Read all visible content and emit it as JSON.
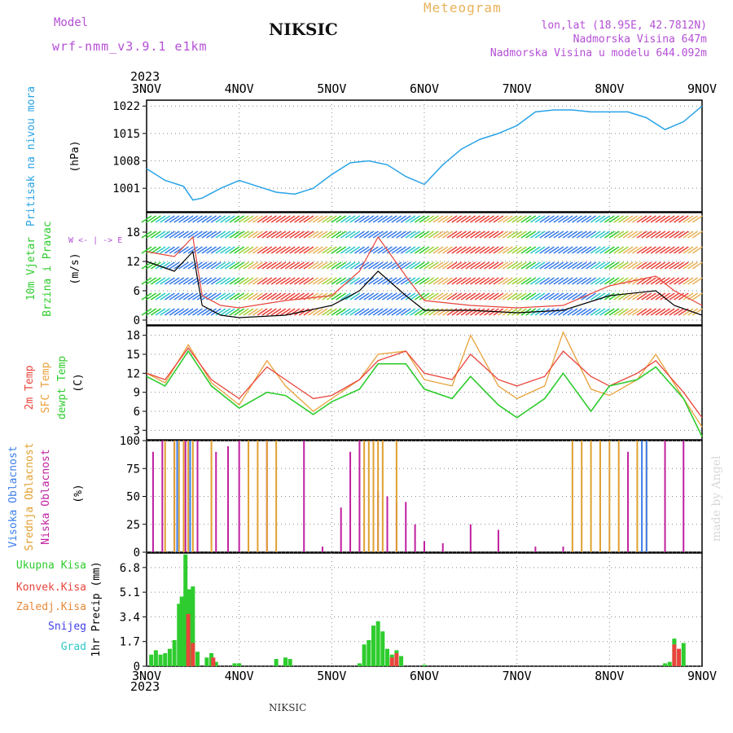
{
  "header": {
    "model_label": "Model",
    "model_name": "wrf-nmm_v3.9.1 e1km",
    "station": "NIKSIC",
    "meteogram": "Meteogram",
    "coords": "lon,lat (18.95E, 42.7812N)",
    "elevation": "Nadmorska Visina 647m",
    "model_elevation": "Nadmorska Visina u modelu 644.092m"
  },
  "footer": {
    "station": "NIKSIC",
    "credit": "made by Angel"
  },
  "time_axis": {
    "year": "2023",
    "labels": [
      "3NOV",
      "4NOV",
      "5NOV",
      "6NOV",
      "7NOV",
      "8NOV",
      "9NOV"
    ]
  },
  "panels": {
    "pressure": {
      "title": "Pritisak na nivou mora",
      "unit": "(hPa)",
      "ticks": [
        "1001",
        "1008",
        "1015",
        "1022"
      ]
    },
    "wind": {
      "title1": "10m Vjetar",
      "title2": "Brzina i Pravac",
      "unit": "(m/s)",
      "ticks": [
        "0",
        "6",
        "12",
        "18"
      ],
      "compass": "W <- | -> E"
    },
    "temp": {
      "title1": "2m Temp",
      "title2": "SFC Temp",
      "title3": "dewpt Temp",
      "unit": "(C)",
      "ticks": [
        "3",
        "6",
        "9",
        "12",
        "15",
        "18"
      ]
    },
    "cloud": {
      "title1": "Visoka Oblacnost",
      "title2": "Srednja Oblacnost",
      "title3": "Niska Oblacnost",
      "unit": "(%)",
      "ticks": [
        "0",
        "25",
        "50",
        "75",
        "100"
      ]
    },
    "precip": {
      "legend": [
        "Ukupna Kisa",
        "Konvek.Kisa",
        "Zaledj.Kisa",
        "Snijeg",
        "Grad"
      ],
      "unit": "1hr Precip (mm)",
      "ticks": [
        "0",
        "1.7",
        "3.4",
        "5.1",
        "6.8"
      ]
    }
  },
  "colors": {
    "pressure": "#29a3e6",
    "temp2m": "#e8453c",
    "sfc": "#e8a13a",
    "dewpt": "#2ecc2e",
    "cloud_high": "#3a7ee8",
    "cloud_mid": "#e0a030",
    "cloud_low": "#c020a0",
    "rain_total": "#2ecc2e",
    "rain_conv": "#e8453c",
    "model_text": "#b44fd6"
  },
  "chart_data": [
    {
      "type": "line",
      "x_unit": "days since 3NOV 00Z",
      "ylabel": "(hPa)",
      "ylim": [
        995,
        1023.5
      ],
      "series": [
        {
          "name": "Pritisak",
          "x": [
            0,
            0.2,
            0.4,
            0.5,
            0.6,
            0.8,
            1.0,
            1.2,
            1.4,
            1.6,
            1.8,
            2.0,
            2.2,
            2.4,
            2.6,
            2.8,
            3.0,
            3.2,
            3.4,
            3.6,
            3.8,
            4.0,
            4.2,
            4.4,
            4.6,
            4.8,
            5.0,
            5.2,
            5.4,
            5.6,
            5.8,
            6.0
          ],
          "values": [
            1006,
            1003,
            1001.5,
            998,
            998.5,
            1001,
            1003,
            1001.5,
            1000,
            999.5,
            1001,
            1004.5,
            1007.5,
            1008,
            1007,
            1004,
            1002,
            1007,
            1011,
            1013.5,
            1015,
            1017,
            1020.5,
            1021,
            1021,
            1020.5,
            1020.5,
            1020.5,
            1019,
            1016,
            1018,
            1022
          ]
        }
      ]
    },
    {
      "type": "line",
      "ylabel": "(m/s)",
      "ylim": [
        -1,
        22
      ],
      "series": [
        {
          "name": "brzina",
          "x": [
            0,
            0.3,
            0.5,
            0.6,
            0.8,
            1.0,
            1.5,
            2.0,
            2.3,
            2.5,
            2.8,
            3.0,
            3.5,
            4.0,
            4.5,
            5.0,
            5.5,
            5.7,
            6.0
          ],
          "values": [
            12,
            10,
            14,
            3,
            1,
            0.5,
            1,
            3,
            6,
            10,
            5,
            2,
            2,
            1.5,
            2,
            5,
            6,
            3,
            1
          ]
        },
        {
          "name": "udari",
          "x": [
            0,
            0.3,
            0.5,
            0.6,
            0.8,
            1.0,
            1.5,
            2.0,
            2.3,
            2.5,
            2.8,
            3.0,
            3.5,
            4.0,
            4.5,
            5.0,
            5.5,
            5.7,
            6.0
          ],
          "values": [
            14,
            13,
            17,
            5,
            3,
            2.5,
            4,
            5,
            10,
            17,
            9,
            4,
            3,
            2.5,
            3,
            7,
            9,
            6,
            3
          ]
        }
      ]
    },
    {
      "type": "line",
      "ylabel": "(C)",
      "ylim": [
        1.5,
        19.5
      ],
      "series": [
        {
          "name": "2m Temp",
          "x": [
            0,
            0.2,
            0.45,
            0.7,
            1.0,
            1.3,
            1.5,
            1.8,
            2.0,
            2.3,
            2.5,
            2.8,
            3.0,
            3.3,
            3.5,
            3.8,
            4.0,
            4.3,
            4.5,
            4.8,
            5.0,
            5.3,
            5.5,
            5.8,
            6.0
          ],
          "values": [
            12,
            11,
            16,
            11,
            8,
            13,
            11,
            8,
            8.5,
            11,
            14,
            15.5,
            12,
            11,
            15,
            11,
            10,
            11.5,
            15.5,
            11.5,
            10,
            12,
            14,
            9,
            5
          ]
        },
        {
          "name": "SFC Temp",
          "x": [
            0,
            0.2,
            0.45,
            0.7,
            1.0,
            1.3,
            1.5,
            1.8,
            2.0,
            2.3,
            2.5,
            2.8,
            3.0,
            3.3,
            3.5,
            3.8,
            4.0,
            4.3,
            4.5,
            4.8,
            5.0,
            5.3,
            5.5,
            5.8,
            6.0
          ],
          "values": [
            12,
            10.5,
            16.5,
            10.5,
            7,
            14,
            10,
            6,
            8,
            11,
            15,
            15.5,
            11,
            10,
            18,
            10,
            8,
            10,
            18.5,
            9.5,
            8.5,
            11,
            15,
            8,
            3.5
          ]
        },
        {
          "name": "dewpt Temp",
          "x": [
            0,
            0.2,
            0.45,
            0.7,
            1.0,
            1.3,
            1.5,
            1.8,
            2.0,
            2.3,
            2.5,
            2.8,
            3.0,
            3.3,
            3.5,
            3.8,
            4.0,
            4.3,
            4.5,
            4.8,
            5.0,
            5.3,
            5.5,
            5.8,
            6.0
          ],
          "values": [
            11.5,
            10,
            15.5,
            10,
            6.5,
            9,
            8.5,
            5.5,
            7.5,
            9.5,
            13.5,
            13.5,
            9.5,
            8,
            11.5,
            7,
            5,
            8,
            12,
            6,
            10,
            11,
            13,
            8,
            2
          ]
        }
      ]
    },
    {
      "type": "bar",
      "ylabel": "(%)",
      "ylim": [
        0,
        100
      ],
      "series": [
        {
          "name": "Niska",
          "x": [
            0.07,
            0.17,
            0.3,
            0.42,
            0.55,
            0.75,
            0.88,
            1.0,
            1.3,
            1.7,
            1.9,
            2.1,
            2.2,
            2.3,
            2.5,
            2.6,
            2.7,
            2.8,
            2.9,
            3.0,
            3.2,
            3.5,
            3.8,
            4.2,
            4.5,
            5.2,
            5.6,
            5.8
          ],
          "values": [
            90,
            100,
            100,
            100,
            100,
            90,
            95,
            100,
            100,
            100,
            5,
            40,
            90,
            100,
            55,
            50,
            45,
            45,
            25,
            10,
            8,
            25,
            20,
            5,
            5,
            90,
            100,
            100
          ]
        },
        {
          "name": "Srednja",
          "x": [
            0.2,
            0.3,
            0.35,
            0.4,
            0.45,
            0.5,
            0.7,
            1.1,
            1.2,
            1.3,
            1.4,
            2.35,
            2.4,
            2.45,
            2.5,
            2.55,
            2.7,
            4.6,
            4.7,
            4.8,
            4.9,
            5.0,
            5.1,
            5.3,
            5.4
          ],
          "values": [
            100,
            100,
            100,
            100,
            100,
            100,
            100,
            100,
            100,
            100,
            100,
            100,
            100,
            100,
            100,
            100,
            100,
            100,
            100,
            100,
            100,
            100,
            100,
            100,
            100
          ]
        },
        {
          "name": "Visoka",
          "x": [
            0.33,
            0.47,
            5.35,
            5.4
          ],
          "values": [
            100,
            100,
            100,
            100
          ]
        }
      ]
    },
    {
      "type": "bar",
      "ylabel": "1hr Precip (mm)",
      "ylim": [
        0,
        7.8
      ],
      "series": [
        {
          "name": "Ukupna Kisa",
          "x": [
            0.05,
            0.1,
            0.15,
            0.2,
            0.25,
            0.3,
            0.35,
            0.38,
            0.42,
            0.46,
            0.5,
            0.55,
            0.65,
            0.7,
            0.75,
            0.95,
            1.0,
            1.4,
            1.5,
            1.55,
            2.3,
            2.35,
            2.4,
            2.45,
            2.5,
            2.55,
            2.6,
            2.65,
            2.7,
            2.75,
            3.0,
            5.6,
            5.65,
            5.7,
            5.8
          ],
          "values": [
            0.8,
            1.1,
            0.8,
            0.9,
            1.2,
            1.8,
            4.3,
            4.8,
            7.7,
            5.3,
            5.5,
            1.0,
            0.6,
            0.9,
            0.3,
            0.2,
            0.2,
            0.5,
            0.6,
            0.5,
            0.2,
            1.5,
            1.8,
            2.8,
            3.1,
            2.4,
            1.2,
            0.8,
            1.1,
            0.7,
            0.1,
            0.2,
            0.3,
            1.9,
            1.6
          ]
        },
        {
          "name": "Konvek.Kisa",
          "x": [
            0.45,
            0.5,
            0.72,
            2.65,
            2.7,
            5.7,
            5.75
          ],
          "values": [
            3.6,
            1.6,
            0.6,
            0.6,
            0.9,
            1.5,
            1.2
          ]
        }
      ]
    }
  ]
}
